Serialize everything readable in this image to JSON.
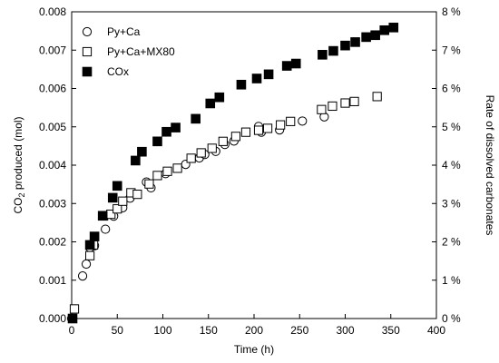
{
  "chart_data": {
    "type": "scatter",
    "xlabel": "Time (h)",
    "ylabel_left": {
      "main": "CO",
      "sub": "2",
      "rest": " produced (mol)"
    },
    "ylabel_right": "Rate of dissolved carbonates",
    "xlim": [
      0,
      400
    ],
    "ylim_left": [
      0,
      0.008
    ],
    "ylim_right": [
      0,
      8
    ],
    "xticks": [
      "0",
      "50",
      "100",
      "150",
      "200",
      "250",
      "300",
      "350",
      "400"
    ],
    "yticks_left": [
      "0.000",
      "0.001",
      "0.002",
      "0.003",
      "0.004",
      "0.005",
      "0.006",
      "0.007",
      "0.008"
    ],
    "yticks_right": [
      "0 %",
      "1 %",
      "2 %",
      "3 %",
      "4 %",
      "5 %",
      "6 %",
      "7 %",
      "8 %"
    ],
    "grid": false,
    "legend_position": "top-left",
    "series": [
      {
        "name": "Py+Ca",
        "marker": "open-circle",
        "color": "#000000",
        "points": [
          [
            0,
            0.0
          ],
          [
            3,
            0.00025
          ],
          [
            12,
            0.00111
          ],
          [
            16,
            0.00142
          ],
          [
            20,
            0.00185
          ],
          [
            25,
            0.0019
          ],
          [
            37,
            0.00233
          ],
          [
            46,
            0.00267
          ],
          [
            56,
            0.00289
          ],
          [
            64,
            0.00314
          ],
          [
            82,
            0.00356
          ],
          [
            87,
            0.00341
          ],
          [
            103,
            0.00378
          ],
          [
            125,
            0.00402
          ],
          [
            140,
            0.00419
          ],
          [
            146,
            0.00428
          ],
          [
            158,
            0.00436
          ],
          [
            168,
            0.00454
          ],
          [
            178,
            0.00463
          ],
          [
            205,
            0.00501
          ],
          [
            208,
            0.00486
          ],
          [
            228,
            0.00492
          ],
          [
            253,
            0.00515
          ],
          [
            277,
            0.00526
          ]
        ]
      },
      {
        "name": "Py+Ca+MX80",
        "marker": "open-square",
        "color": "#000000",
        "points": [
          [
            3,
            0.00025
          ],
          [
            20,
            0.00164
          ],
          [
            24,
            0.00192
          ],
          [
            35,
            0.00268
          ],
          [
            43,
            0.00272
          ],
          [
            50,
            0.00286
          ],
          [
            56,
            0.00306
          ],
          [
            65,
            0.00328
          ],
          [
            72,
            0.00324
          ],
          [
            85,
            0.00351
          ],
          [
            94,
            0.00373
          ],
          [
            105,
            0.00384
          ],
          [
            116,
            0.00392
          ],
          [
            131,
            0.00418
          ],
          [
            142,
            0.00432
          ],
          [
            154,
            0.00444
          ],
          [
            166,
            0.00462
          ],
          [
            180,
            0.00475
          ],
          [
            191,
            0.00486
          ],
          [
            205,
            0.00491
          ],
          [
            215,
            0.00496
          ],
          [
            229,
            0.00505
          ],
          [
            240,
            0.00514
          ],
          [
            274,
            0.00545
          ],
          [
            286,
            0.00554
          ],
          [
            300,
            0.00562
          ],
          [
            310,
            0.00566
          ],
          [
            335,
            0.00579
          ]
        ]
      },
      {
        "name": "COx",
        "marker": "filled-square",
        "color": "#000000",
        "points": [
          [
            1,
            0.0
          ],
          [
            20,
            0.00192
          ],
          [
            25,
            0.00214
          ],
          [
            34,
            0.00268
          ],
          [
            45,
            0.00315
          ],
          [
            50,
            0.00346
          ],
          [
            70,
            0.00412
          ],
          [
            77,
            0.00435
          ],
          [
            94,
            0.00462
          ],
          [
            104,
            0.00487
          ],
          [
            114,
            0.00498
          ],
          [
            136,
            0.00521
          ],
          [
            152,
            0.00561
          ],
          [
            162,
            0.00577
          ],
          [
            186,
            0.0061
          ],
          [
            203,
            0.00626
          ],
          [
            216,
            0.00637
          ],
          [
            236,
            0.00659
          ],
          [
            246,
            0.00665
          ],
          [
            275,
            0.00688
          ],
          [
            287,
            0.00698
          ],
          [
            300,
            0.00712
          ],
          [
            311,
            0.00721
          ],
          [
            323,
            0.00734
          ],
          [
            333,
            0.00739
          ],
          [
            343,
            0.00752
          ],
          [
            353,
            0.00759
          ]
        ]
      }
    ]
  }
}
